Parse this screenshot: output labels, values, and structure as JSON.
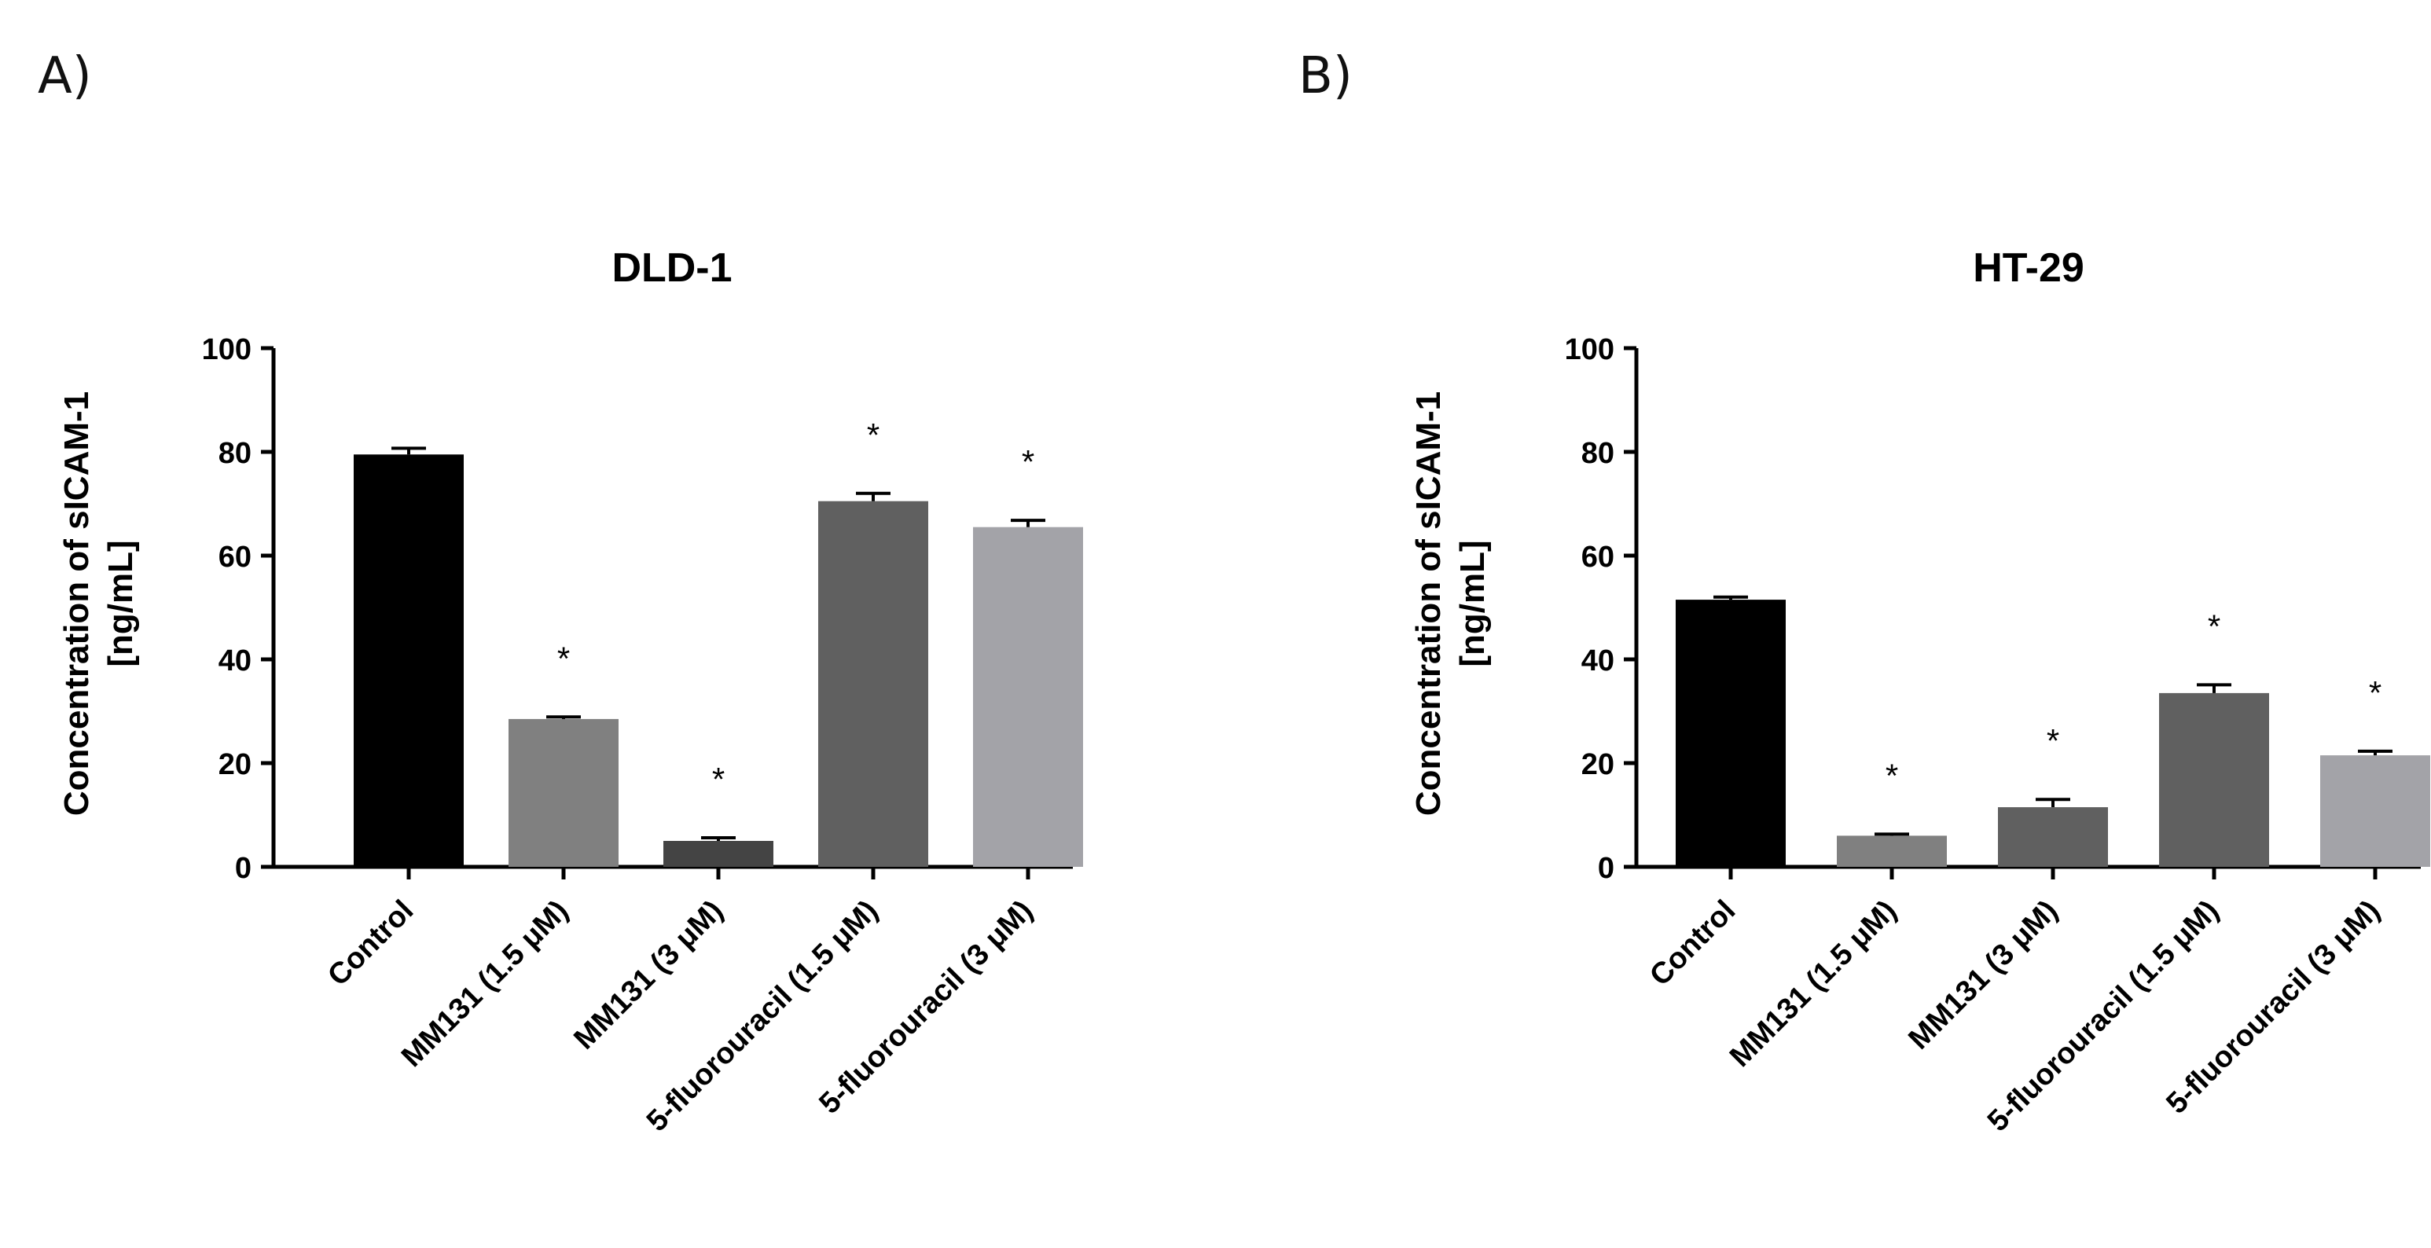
{
  "panels": [
    {
      "label": "A)"
    },
    {
      "label": "B)"
    }
  ],
  "chart_data": [
    {
      "type": "bar",
      "title": "DLD-1",
      "categories": [
        "Control",
        "MM131 (1.5 μM)",
        "MM131 (3 μM)",
        "5-fluorouracil (1.5 μM)",
        "5-fluorouracil (3 μM)"
      ],
      "values": [
        79.5,
        28.5,
        5,
        70.5,
        65.5
      ],
      "errors": [
        1.2,
        0.4,
        0.6,
        1.5,
        1.3
      ],
      "significance": [
        "",
        "*",
        "*",
        "*",
        "*"
      ],
      "colors": [
        "#000000",
        "#808080",
        "#444444",
        "#606060",
        "#a3a3a8"
      ],
      "ylabel_line1": "Concentration of sICAM-1",
      "ylabel_line2": "[ng/mL]",
      "ylim": [
        0,
        100
      ],
      "yticks": [
        0,
        20,
        40,
        60,
        80,
        100
      ]
    },
    {
      "type": "bar",
      "title": "HT-29",
      "categories": [
        "Control",
        "MM131 (1.5 μM)",
        "MM131 (3 μM)",
        "5-fluorouracil (1.5 μM)",
        "5-fluorouracil (3 μM)"
      ],
      "values": [
        51.5,
        6,
        11.5,
        33.5,
        21.5
      ],
      "errors": [
        0.5,
        0.3,
        1.5,
        1.6,
        0.8
      ],
      "significance": [
        "",
        "*",
        "*",
        "*",
        "*"
      ],
      "colors": [
        "#000000",
        "#808080",
        "#606060",
        "#606060",
        "#a3a3a8"
      ],
      "ylabel_line1": "Concentration of sICAM-1",
      "ylabel_line2": "[ng/mL]",
      "ylim": [
        0,
        100
      ],
      "yticks": [
        0,
        20,
        40,
        60,
        80,
        100
      ]
    }
  ]
}
